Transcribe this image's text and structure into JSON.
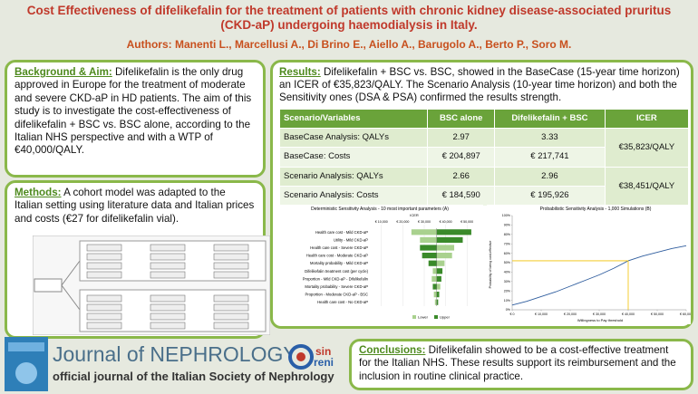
{
  "header": {
    "title": "Cost Effectiveness of difelikefalin for the treatment of patients with chronic kidney disease-associated pruritus (CKD-aP) undergoing haemodialysis in Italy.",
    "authors": "Authors: Manenti L., Marcellusi A., Di Brino E., Aiello A., Barugolo A., Berto P., Soro M."
  },
  "background": {
    "heading": "Background & Aim:",
    "text": "Difelikefalin is the only drug approved in Europe for the treatment of moderate and severe CKD-aP in HD patients. The aim of this study is to investigate the cost-effectiveness of difelikefalin + BSC vs. BSC alone, according to the Italian NHS perspective and with a WTP of €40,000/QALY."
  },
  "methods": {
    "heading": "Methods:",
    "text": "A cohort model was adapted to the Italian setting using literature data and Italian prices and costs (€27 for difelikefalin vial)."
  },
  "results": {
    "heading": "Results:",
    "text": "Difelikefalin + BSC vs. BSC, showed in the BaseCase (15-year time horizon) an ICER of €35,823/QALY. The Scenario Analysis (10-year time horizon) and both the Sensitivity ones (DSA & PSA) confirmed the results strength."
  },
  "table": {
    "headers": [
      "Scenario/Variables",
      "BSC alone",
      "Difelikefalin + BSC",
      "ICER"
    ],
    "rows": [
      [
        "BaseCase Analysis: QALYs",
        "2.97",
        "3.33"
      ],
      [
        "BaseCase: Costs",
        "€ 204,897",
        "€ 217,741"
      ],
      [
        "Scenario Analysis: QALYs",
        "2.66",
        "2.96"
      ],
      [
        "Scenario Analysis: Costs",
        "€ 184,590",
        "€ 195,926"
      ]
    ],
    "icer": [
      "€35,823/QALY",
      "€38,451/QALY"
    ]
  },
  "tornado": {
    "title": "Deterministic Sensitivity Analysis - 10 most important parameters (A)",
    "axis_label": "ICER",
    "categories": [
      "Health care cost - Mild CKD-aP",
      "Utility - Mild CKD-aP",
      "Health care cost - Severe CKD-aP",
      "Health care cost - Moderate CKD-aP",
      "Mortality probability - Mild CKD-aP",
      "Difelikefalin treatment cost (per cycle)",
      "Proportion - Mild CKD-aP - Difelikefalin",
      "Mortality probability - Severe CKD-aP",
      "Proportion - Moderate CKD-aP - BSC",
      "Health care cost - No CKD-aP"
    ],
    "base": 35823,
    "series": [
      {
        "name": "Lower",
        "color": "#a9d18e",
        "values": [
          24000,
          28000,
          44000,
          43000,
          39500,
          34000,
          33500,
          37500,
          34500,
          35000
        ]
      },
      {
        "name": "Upper",
        "color": "#3a8a2a",
        "values": [
          52000,
          48000,
          28000,
          29000,
          32000,
          38500,
          38000,
          34000,
          37000,
          36500
        ]
      }
    ],
    "xlim": [
      5000,
      55000
    ],
    "xticks": [
      {
        "value": 10000,
        "label": "€ 10,000"
      },
      {
        "value": 20000,
        "label": "€ 20,000"
      },
      {
        "value": 30000,
        "label": "€ 30,000"
      },
      {
        "value": 40000,
        "label": "€ 40,000"
      },
      {
        "value": 50000,
        "label": "€ 50,000"
      }
    ]
  },
  "psa": {
    "type": "line",
    "title": "Probabilistic Sensitivity Analysis - 1,000 Simulations (B)",
    "x_label": "Willingness to Pay threshold",
    "y_label": "Probability of being cost-effective",
    "x": [
      0,
      5000,
      10000,
      15000,
      20000,
      25000,
      30000,
      35000,
      40000,
      45000,
      50000,
      55000,
      60000
    ],
    "values": [
      5,
      9,
      14,
      19,
      25,
      31,
      37,
      44,
      52,
      57,
      61,
      65,
      68
    ],
    "color": "#2f5d9e",
    "threshold": 40000,
    "threshold_color": "#f2c200",
    "xlim": [
      0,
      60000
    ],
    "ylim": [
      0,
      100
    ],
    "xticks": [
      {
        "value": 0,
        "label": "€ 0"
      },
      {
        "value": 10000,
        "label": "€ 10,000"
      },
      {
        "value": 20000,
        "label": "€ 20,000"
      },
      {
        "value": 30000,
        "label": "€ 30,000"
      },
      {
        "value": 40000,
        "label": "€ 40,000"
      },
      {
        "value": 50000,
        "label": "€ 50,000"
      },
      {
        "value": 60000,
        "label": "€ 60,000"
      }
    ],
    "yticks": [
      {
        "value": 0,
        "label": "0%"
      },
      {
        "value": 10,
        "label": "10%"
      },
      {
        "value": 20,
        "label": "20%"
      },
      {
        "value": 30,
        "label": "30%"
      },
      {
        "value": 40,
        "label": "40%"
      },
      {
        "value": 50,
        "label": "50%"
      },
      {
        "value": 60,
        "label": "60%"
      },
      {
        "value": 70,
        "label": "70%"
      },
      {
        "value": 80,
        "label": "80%"
      },
      {
        "value": 90,
        "label": "90%"
      },
      {
        "value": 100,
        "label": "100%"
      }
    ]
  },
  "footer": {
    "journal": "Journal of NEPHROLOGY",
    "subtitle": "official journal of the Italian Society of Nephrology",
    "logo_top": "sin",
    "logo_bottom": "reni"
  },
  "conclusions": {
    "heading": "Conclusions:",
    "text": "Difelikefalin showed to be a cost-effective treatment for the Italian NHS. These results support its reimbursement and the inclusion in routine clinical practice."
  }
}
